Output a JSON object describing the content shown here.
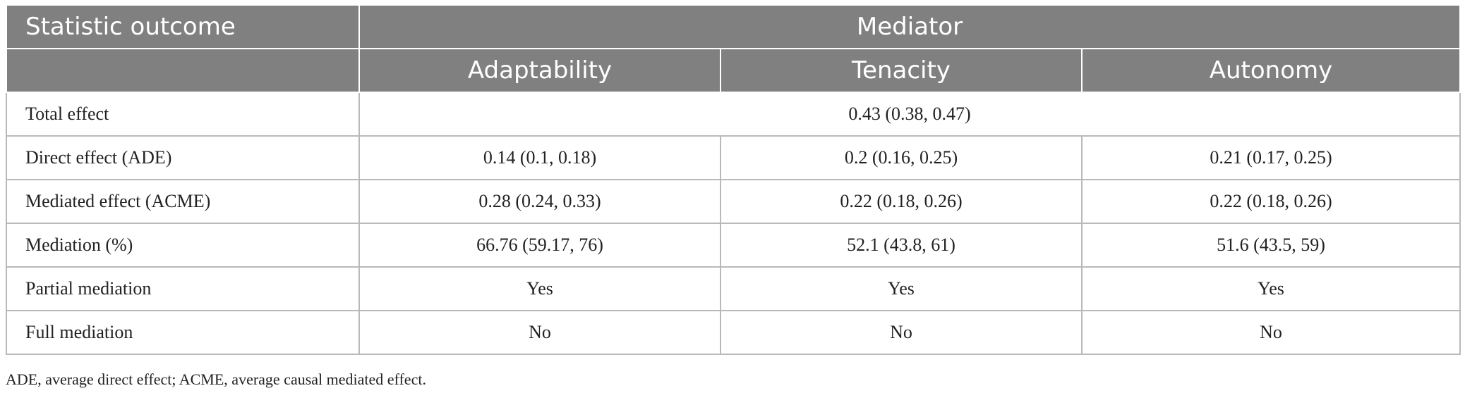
{
  "table": {
    "header": {
      "stat_col": "Statistic outcome",
      "group": "Mediator",
      "mediators": [
        "Adaptability",
        "Tenacity",
        "Autonomy"
      ]
    },
    "total_effect": {
      "label": "Total effect",
      "value": "0.43 (0.38, 0.47)"
    },
    "rows": [
      {
        "label": "Direct effect (ADE)",
        "values": [
          "0.14 (0.1, 0.18)",
          "0.2 (0.16, 0.25)",
          "0.21 (0.17, 0.25)"
        ]
      },
      {
        "label": "Mediated effect (ACME)",
        "values": [
          "0.28 (0.24, 0.33)",
          "0.22 (0.18, 0.26)",
          "0.22 (0.18, 0.26)"
        ]
      },
      {
        "label": "Mediation (%)",
        "values": [
          "66.76 (59.17, 76)",
          "52.1 (43.8, 61)",
          "51.6 (43.5, 59)"
        ]
      },
      {
        "label": "Partial mediation",
        "values": [
          "Yes",
          "Yes",
          "Yes"
        ]
      },
      {
        "label": "Full mediation",
        "values": [
          "No",
          "No",
          "No"
        ]
      }
    ]
  },
  "footnote": "ADE, average direct effect; ACME, average causal mediated effect.",
  "colors": {
    "header_bg": "#808080",
    "header_text": "#ffffff",
    "grid": "#b9b9b9"
  }
}
